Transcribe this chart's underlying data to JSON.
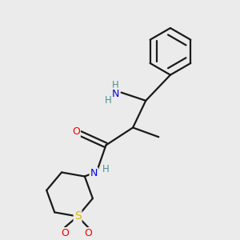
{
  "bg_color": "#ebebeb",
  "bond_color": "#1a1a1a",
  "atom_colors": {
    "N": "#0000ee",
    "O": "#ee0000",
    "S": "#ddbb00",
    "H": "#4a9090"
  },
  "bond_lw": 1.6,
  "font_size": 9
}
